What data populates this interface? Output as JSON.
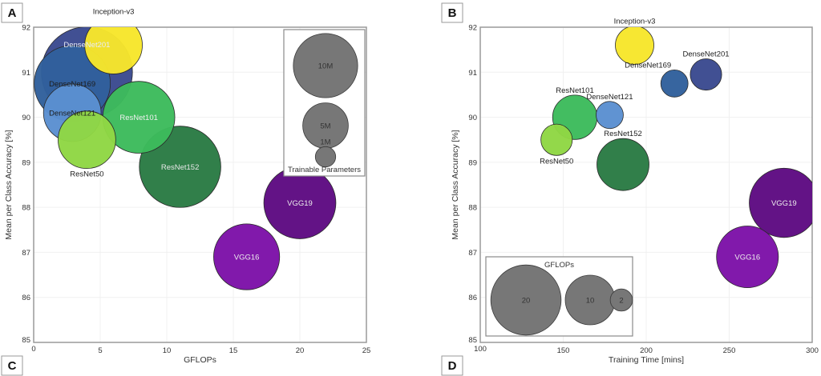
{
  "chart_data": [
    {
      "panel": "A",
      "type": "scatter",
      "subtype": "bubble",
      "title": "",
      "xlabel": "GFLOPs",
      "ylabel": "Mean per Class Accuracy [%]",
      "xlim": [
        0,
        25
      ],
      "ylim": [
        85,
        92
      ],
      "xticks": [
        "0",
        "5",
        "10",
        "15",
        "20",
        "25"
      ],
      "yticks": [
        "85",
        "86",
        "87",
        "88",
        "89",
        "90",
        "91",
        "92"
      ],
      "grid": true,
      "size_encodes": "Trainable Parameters",
      "legend": {
        "title": "Trainable Parameters",
        "placement": "top-right",
        "entries": [
          {
            "label": "10M",
            "size": 10
          },
          {
            "label": "5M",
            "size": 5
          },
          {
            "label": "1M",
            "size": 1
          }
        ]
      },
      "points": [
        {
          "name": "DenseNet201",
          "x": 4.0,
          "y": 91.0,
          "size": 20.0,
          "color": "#3b4a8f",
          "label_pos": "top-inside",
          "label_color": "#e8ecf8"
        },
        {
          "name": "DenseNet169",
          "x": 2.9,
          "y": 90.75,
          "size": 14.0,
          "color": "#31609c",
          "label_pos": "center",
          "label_color": "#1d1d1d"
        },
        {
          "name": "DenseNet121",
          "x": 2.9,
          "y": 90.1,
          "size": 8.0,
          "color": "#5b8fd1",
          "label_pos": "center",
          "label_color": "#1d1d1d"
        },
        {
          "name": "Inception-v3",
          "x": 6.0,
          "y": 91.6,
          "size": 8.0,
          "color": "#f7e62b",
          "label_pos": "above",
          "label_color": "#1d1d1d"
        },
        {
          "name": "ResNet50",
          "x": 4.0,
          "y": 89.5,
          "size": 8.0,
          "color": "#8fd744",
          "label_pos": "below",
          "label_color": "#1d1d1d"
        },
        {
          "name": "ResNet101",
          "x": 7.9,
          "y": 90.0,
          "size": 12.5,
          "color": "#3dbb5c",
          "label_pos": "center",
          "label_color": "#f0f0f0"
        },
        {
          "name": "ResNet152",
          "x": 11.0,
          "y": 88.9,
          "size": 16.0,
          "color": "#2a7b44",
          "label_pos": "center",
          "label_color": "#e8e8e8"
        },
        {
          "name": "VGG19",
          "x": 20.0,
          "y": 88.1,
          "size": 12.5,
          "color": "#5e0b82",
          "label_pos": "center",
          "label_color": "#eeeeee"
        },
        {
          "name": "VGG16",
          "x": 16.0,
          "y": 86.9,
          "size": 10.5,
          "color": "#7d12a8",
          "label_pos": "center",
          "label_color": "#eeeeee"
        }
      ]
    },
    {
      "panel": "B",
      "type": "scatter",
      "subtype": "bubble",
      "title": "",
      "xlabel": "Training Time [mins]",
      "ylabel": "Mean per Class Accuracy [%]",
      "xlim": [
        100,
        300
      ],
      "ylim": [
        85,
        92
      ],
      "xticks": [
        "100",
        "150",
        "200",
        "250",
        "300"
      ],
      "yticks": [
        "85",
        "86",
        "87",
        "88",
        "89",
        "90",
        "91",
        "92"
      ],
      "grid": true,
      "size_encodes": "GFLOPs",
      "legend": {
        "title": "GFLOPs",
        "placement": "bottom-left",
        "entries": [
          {
            "label": "20",
            "size": 20
          },
          {
            "label": "10",
            "size": 10
          },
          {
            "label": "2",
            "size": 2
          }
        ]
      },
      "points": [
        {
          "name": "Inception-v3",
          "x": 193,
          "y": 91.6,
          "size": 6.0,
          "color": "#f7e62b",
          "label_pos": "above",
          "label_color": "#1d1d1d"
        },
        {
          "name": "DenseNet201",
          "x": 236,
          "y": 90.95,
          "size": 4.0,
          "color": "#3b4a8f",
          "label_pos": "above",
          "label_color": "#1d1d1d"
        },
        {
          "name": "DenseNet169",
          "x": 217,
          "y": 90.75,
          "size": 3.0,
          "color": "#31609c",
          "label_pos": "above-left",
          "label_color": "#1d1d1d"
        },
        {
          "name": "DenseNet121",
          "x": 178,
          "y": 90.05,
          "size": 3.0,
          "color": "#5b8fd1",
          "label_pos": "above",
          "label_color": "#1d1d1d"
        },
        {
          "name": "ResNet101",
          "x": 157,
          "y": 90.0,
          "size": 8.0,
          "color": "#3dbb5c",
          "label_pos": "above",
          "label_color": "#1d1d1d"
        },
        {
          "name": "ResNet50",
          "x": 146,
          "y": 89.5,
          "size": 4.0,
          "color": "#8fd744",
          "label_pos": "below",
          "label_color": "#1d1d1d"
        },
        {
          "name": "ResNet152",
          "x": 186,
          "y": 88.95,
          "size": 11.0,
          "color": "#2a7b44",
          "label_pos": "above",
          "label_color": "#1d1d1d"
        },
        {
          "name": "VGG19",
          "x": 283,
          "y": 88.1,
          "size": 19.5,
          "color": "#5e0b82",
          "label_pos": "center",
          "label_color": "#eeeeee"
        },
        {
          "name": "VGG16",
          "x": 261,
          "y": 86.9,
          "size": 15.5,
          "color": "#7d12a8",
          "label_pos": "center",
          "label_color": "#eeeeee"
        }
      ]
    }
  ],
  "panel_labels": [
    "A",
    "B",
    "C",
    "D"
  ]
}
